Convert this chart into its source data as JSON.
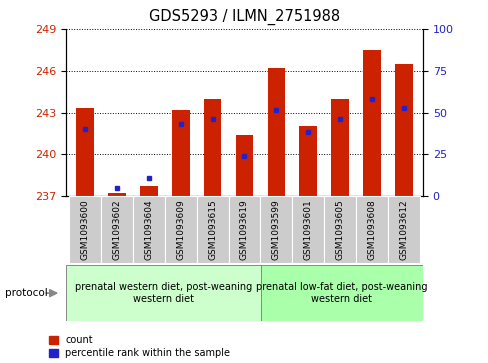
{
  "title": "GDS5293 / ILMN_2751988",
  "samples": [
    "GSM1093600",
    "GSM1093602",
    "GSM1093604",
    "GSM1093609",
    "GSM1093615",
    "GSM1093619",
    "GSM1093599",
    "GSM1093601",
    "GSM1093605",
    "GSM1093608",
    "GSM1093612"
  ],
  "red_values": [
    243.3,
    237.2,
    237.7,
    243.2,
    244.0,
    241.4,
    246.2,
    242.0,
    244.0,
    247.5,
    246.5
  ],
  "blue_values": [
    241.8,
    237.6,
    238.3,
    242.2,
    242.5,
    239.9,
    243.2,
    241.6,
    242.5,
    244.0,
    243.3
  ],
  "ylim_left": [
    237,
    249
  ],
  "ylim_right": [
    0,
    100
  ],
  "yticks_left": [
    237,
    240,
    243,
    246,
    249
  ],
  "yticks_right": [
    0,
    25,
    50,
    75,
    100
  ],
  "group1_label": "prenatal western diet, post-weaning\nwestern diet",
  "group2_label": "prenatal low-fat diet, post-weaning\nwestern diet",
  "group1_count": 6,
  "group2_count": 5,
  "bar_color": "#cc2200",
  "dot_color": "#2222cc",
  "bar_width": 0.55,
  "legend_count": "count",
  "legend_percentile": "percentile rank within the sample",
  "protocol_label": "protocol",
  "group1_bg": "#ccffcc",
  "group2_bg": "#aaffaa",
  "tick_bg": "#cccccc",
  "figwidth": 4.89,
  "figheight": 3.63,
  "dpi": 100
}
